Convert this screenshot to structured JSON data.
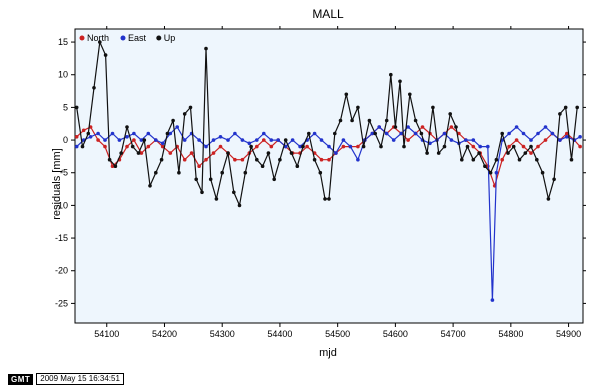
{
  "chart_data": {
    "type": "line",
    "title": "MALL",
    "xlabel": "mjd",
    "ylabel": "residuals [mm]",
    "xlim": [
      54045,
      54925
    ],
    "ylim": [
      -28,
      17
    ],
    "x_ticks": [
      54100,
      54200,
      54300,
      54400,
      54500,
      54600,
      54700,
      54800,
      54900
    ],
    "y_ticks": [
      15,
      10,
      5,
      0,
      -5,
      -10,
      -15,
      -20,
      -25
    ],
    "legend_placement": "top-left",
    "background_color": "#eef6fd",
    "series": [
      {
        "name": "North",
        "color": "#cc2222",
        "x": [
          54048,
          54060,
          54072,
          54085,
          54097,
          54110,
          54122,
          54135,
          54147,
          54160,
          54172,
          54185,
          54197,
          54210,
          54222,
          54235,
          54247,
          54260,
          54272,
          54285,
          54297,
          54310,
          54322,
          54335,
          54347,
          54360,
          54372,
          54385,
          54397,
          54410,
          54422,
          54435,
          54447,
          54460,
          54472,
          54485,
          54497,
          54510,
          54522,
          54535,
          54547,
          54560,
          54572,
          54585,
          54597,
          54610,
          54622,
          54635,
          54647,
          54660,
          54672,
          54685,
          54697,
          54710,
          54722,
          54735,
          54747,
          54760,
          54772,
          54785,
          54797,
          54810,
          54822,
          54835,
          54847,
          54860,
          54872,
          54885,
          54897,
          54910,
          54920
        ],
        "y": [
          0.5,
          1.5,
          2,
          0,
          -1,
          -4,
          -3,
          -1,
          0,
          -2,
          -1,
          0,
          -1,
          -2,
          -1,
          -3,
          -2,
          -4,
          -3,
          -2,
          -1,
          -2,
          -3,
          -3,
          -2,
          -1,
          0,
          -1,
          0,
          -1,
          -2,
          -2,
          -1,
          -2,
          -3,
          -3,
          -2,
          -1,
          -1,
          -1,
          0,
          1,
          2,
          1,
          2,
          1,
          0,
          1,
          2,
          1,
          0,
          1,
          2,
          1,
          0,
          -1,
          -2,
          -4,
          -7,
          -3,
          -1,
          0,
          -1,
          -2,
          -1,
          0,
          1,
          0,
          1,
          0,
          -1
        ]
      },
      {
        "name": "East",
        "color": "#2233cc",
        "x": [
          54048,
          54060,
          54072,
          54085,
          54097,
          54110,
          54122,
          54135,
          54147,
          54160,
          54172,
          54185,
          54197,
          54210,
          54222,
          54235,
          54247,
          54260,
          54272,
          54285,
          54297,
          54310,
          54322,
          54335,
          54347,
          54360,
          54372,
          54385,
          54397,
          54410,
          54422,
          54435,
          54447,
          54460,
          54472,
          54485,
          54497,
          54510,
          54522,
          54535,
          54547,
          54560,
          54572,
          54585,
          54597,
          54610,
          54622,
          54635,
          54647,
          54660,
          54672,
          54685,
          54697,
          54710,
          54722,
          54735,
          54747,
          54760,
          54768,
          54775,
          54785,
          54797,
          54810,
          54822,
          54835,
          54847,
          54860,
          54872,
          54885,
          54897,
          54910,
          54920
        ],
        "y": [
          -1,
          0,
          0.5,
          1,
          0,
          1,
          0,
          0.5,
          1,
          0,
          1,
          0,
          -0.5,
          1,
          2,
          0,
          1,
          0,
          -1,
          0,
          0.5,
          0,
          1,
          0,
          -0.5,
          0,
          1,
          0,
          0,
          -1,
          0,
          -1,
          0,
          1,
          0,
          -1,
          -2,
          0,
          -1,
          -3,
          0,
          1,
          2,
          1,
          0,
          1,
          2,
          1,
          0,
          -0.5,
          0,
          1,
          0,
          -0.5,
          0,
          0,
          -1,
          -1,
          -24.5,
          -5,
          0,
          1,
          2,
          1,
          0,
          1,
          2,
          1,
          0,
          0.5,
          0,
          0.5
        ]
      },
      {
        "name": "Up",
        "color": "#111111",
        "x": [
          54048,
          54058,
          54068,
          54078,
          54088,
          54098,
          54105,
          54115,
          54125,
          54135,
          54145,
          54155,
          54165,
          54175,
          54185,
          54195,
          54205,
          54215,
          54225,
          54235,
          54245,
          54255,
          54265,
          54272,
          54280,
          54290,
          54300,
          54310,
          54320,
          54330,
          54340,
          54350,
          54360,
          54370,
          54380,
          54390,
          54400,
          54410,
          54420,
          54430,
          54440,
          54450,
          54460,
          54470,
          54478,
          54485,
          54495,
          54505,
          54515,
          54525,
          54535,
          54545,
          54555,
          54565,
          54575,
          54585,
          54592,
          54600,
          54608,
          54615,
          54625,
          54635,
          54645,
          54655,
          54665,
          54675,
          54685,
          54695,
          54705,
          54715,
          54725,
          54735,
          54745,
          54755,
          54765,
          54775,
          54785,
          54795,
          54805,
          54815,
          54825,
          54835,
          54845,
          54855,
          54865,
          54875,
          54885,
          54895,
          54905,
          54915
        ],
        "y": [
          5,
          -1,
          1,
          8,
          15,
          13,
          -3,
          -4,
          -2,
          2,
          -1,
          -2,
          0,
          -7,
          -5,
          -3,
          1,
          3,
          -5,
          4,
          5,
          -6,
          -8,
          14,
          -6,
          -9,
          -5,
          -2,
          -8,
          -10,
          -5,
          -1,
          -3,
          -4,
          -2,
          -6,
          -3,
          0,
          -2,
          -4,
          -1,
          1,
          -3,
          -5,
          -9,
          -9,
          1,
          3,
          7,
          3,
          5,
          -1,
          3,
          1,
          -1,
          3,
          10,
          2,
          9,
          -1,
          7,
          3,
          1,
          -2,
          5,
          -2,
          -1,
          4,
          2,
          -3,
          -1,
          -3,
          -2,
          -4,
          -5,
          -3,
          1,
          -2,
          -1,
          -3,
          -2,
          -1,
          -3,
          -5,
          -9,
          -6,
          4,
          5,
          -3,
          5
        ]
      }
    ]
  },
  "footer": {
    "logo_text": "GMT",
    "timestamp": "2009 May 15 16:34:51"
  }
}
